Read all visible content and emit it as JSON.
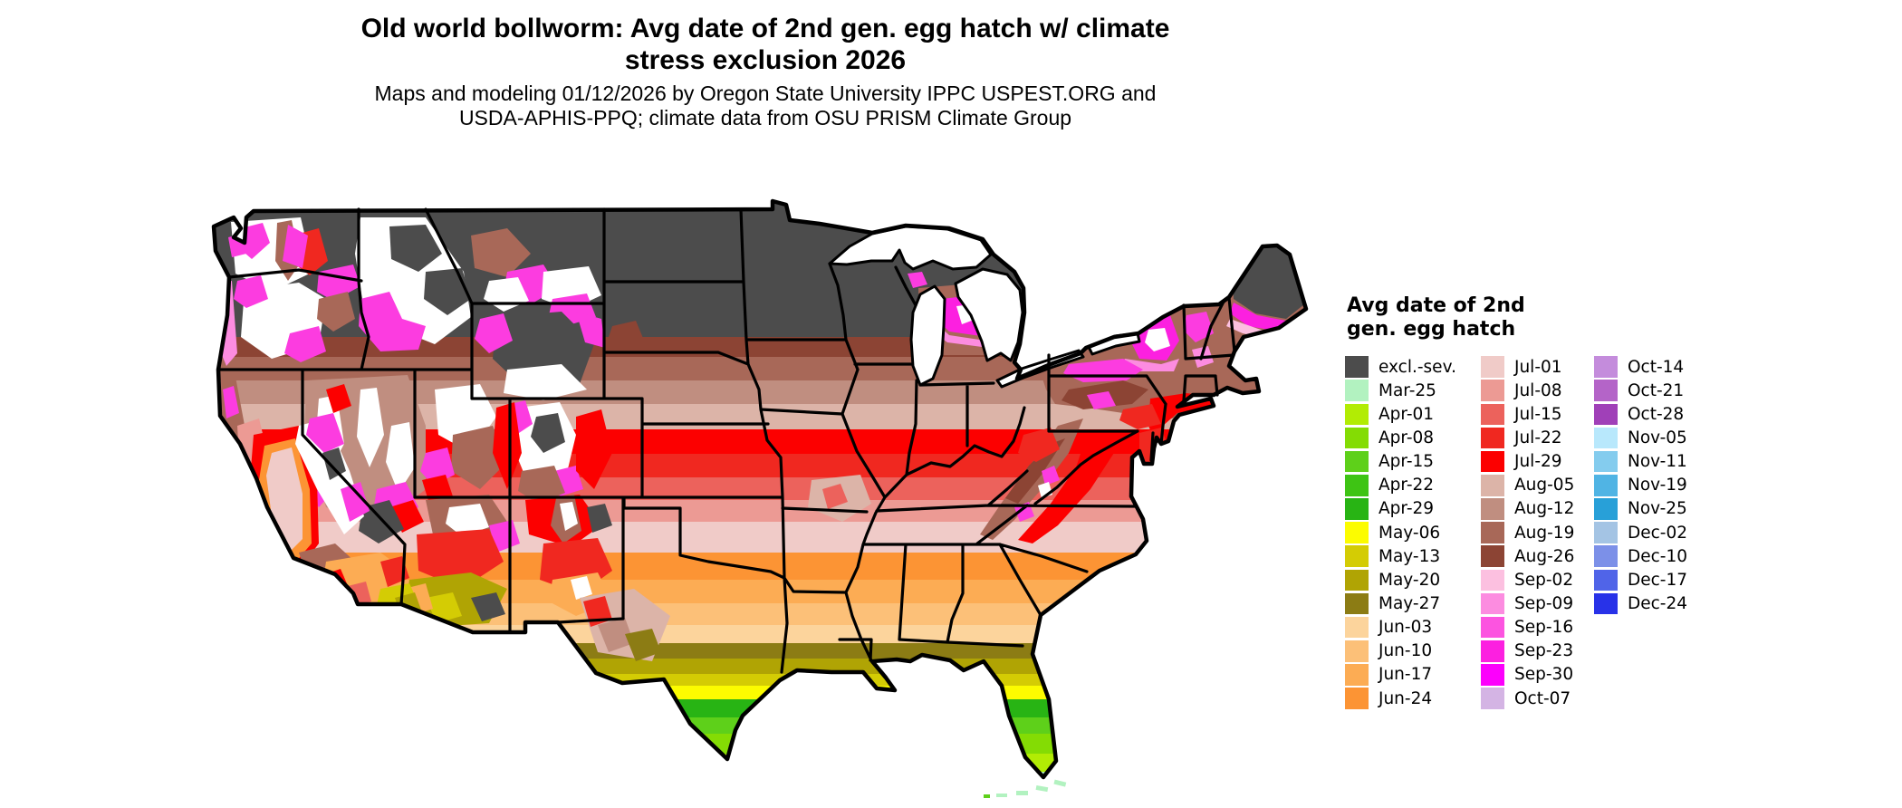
{
  "header": {
    "title_line1": "Old world bollworm: Avg date of 2nd gen. egg hatch w/ climate",
    "title_line2": "stress exclusion 2026",
    "subtitle_line1": "Maps and modeling 01/12/2026 by Oregon State University IPPC USPEST.ORG and",
    "subtitle_line2": "USDA-APHIS-PPQ; climate data from OSU PRISM Climate Group"
  },
  "legend": {
    "title_line1": "Avg date of 2nd",
    "title_line2": "gen. egg hatch",
    "columns": [
      [
        {
          "label": "excl.-sev.",
          "color": "#4c4c4c"
        },
        {
          "label": "Mar-25",
          "color": "#b2f2c0"
        },
        {
          "label": "Apr-01",
          "color": "#b2ec04"
        },
        {
          "label": "Apr-08",
          "color": "#84dc04"
        },
        {
          "label": "Apr-15",
          "color": "#5ed01a"
        },
        {
          "label": "Apr-22",
          "color": "#3ec414"
        },
        {
          "label": "Apr-29",
          "color": "#28b414"
        },
        {
          "label": "May-06",
          "color": "#fcfc00"
        },
        {
          "label": "May-13",
          "color": "#d4cc04"
        },
        {
          "label": "May-20",
          "color": "#b0a404"
        },
        {
          "label": "May-27",
          "color": "#8c7c14"
        },
        {
          "label": "Jun-03",
          "color": "#fcd49c"
        },
        {
          "label": "Jun-10",
          "color": "#fcc078"
        },
        {
          "label": "Jun-17",
          "color": "#fcac54"
        },
        {
          "label": "Jun-24",
          "color": "#fc9434"
        }
      ],
      [
        {
          "label": "Jul-01",
          "color": "#f0cbc8"
        },
        {
          "label": "Jul-08",
          "color": "#ec9a94"
        },
        {
          "label": "Jul-15",
          "color": "#ec625c"
        },
        {
          "label": "Jul-22",
          "color": "#f02820"
        },
        {
          "label": "Jul-29",
          "color": "#fc0000"
        },
        {
          "label": "Aug-05",
          "color": "#dcb4a8"
        },
        {
          "label": "Aug-12",
          "color": "#c08e80"
        },
        {
          "label": "Aug-19",
          "color": "#a86858"
        },
        {
          "label": "Aug-26",
          "color": "#8c4434"
        },
        {
          "label": "Sep-02",
          "color": "#fcc0e0"
        },
        {
          "label": "Sep-09",
          "color": "#fc8ce0"
        },
        {
          "label": "Sep-16",
          "color": "#fc54e0"
        },
        {
          "label": "Sep-23",
          "color": "#fc20e0"
        },
        {
          "label": "Sep-30",
          "color": "#fc00fc"
        },
        {
          "label": "Oct-07",
          "color": "#d4b4e4"
        }
      ],
      [
        {
          "label": "Oct-14",
          "color": "#c48cdc"
        },
        {
          "label": "Oct-21",
          "color": "#b464c8"
        },
        {
          "label": "Oct-28",
          "color": "#a040b8"
        },
        {
          "label": "Nov-05",
          "color": "#b8e8fc"
        },
        {
          "label": "Nov-11",
          "color": "#84ccee"
        },
        {
          "label": "Nov-19",
          "color": "#50b4e4"
        },
        {
          "label": "Nov-25",
          "color": "#28a0d8"
        },
        {
          "label": "Dec-02",
          "color": "#a4c4e4"
        },
        {
          "label": "Dec-10",
          "color": "#7c90e8"
        },
        {
          "label": "Dec-17",
          "color": "#5064e8"
        },
        {
          "label": "Dec-24",
          "color": "#2832e8"
        }
      ]
    ]
  }
}
